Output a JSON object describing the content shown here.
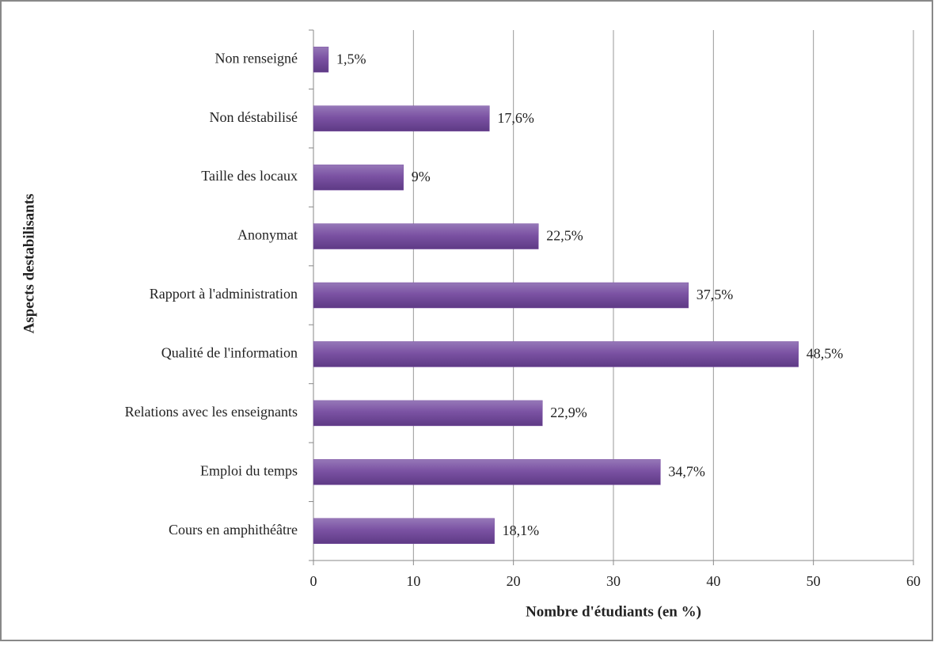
{
  "chart_data": {
    "type": "bar",
    "orientation": "horizontal",
    "x_label": "Nombre d'étudiants (en %)",
    "y_label": "Aspects destabilisants",
    "categories": [
      "Non renseigné",
      "Non déstabilisé",
      "Taille des locaux",
      "Anonymat",
      "Rapport à l'administration",
      "Qualité de l'information",
      "Relations avec les enseignants",
      "Emploi du temps",
      "Cours en amphithéâtre"
    ],
    "values": [
      1.5,
      17.6,
      9,
      22.5,
      37.5,
      48.5,
      22.9,
      34.7,
      18.1
    ],
    "value_labels": [
      "1,5%",
      "17,6%",
      "9%",
      "22,5%",
      "37,5%",
      "48,5%",
      "22,9%",
      "34,7%",
      "18,1%"
    ],
    "color": "#7b52a3",
    "xlim": [
      0,
      60
    ],
    "xticks": [
      0,
      10,
      20,
      30,
      40,
      50,
      60
    ],
    "grid": true
  }
}
